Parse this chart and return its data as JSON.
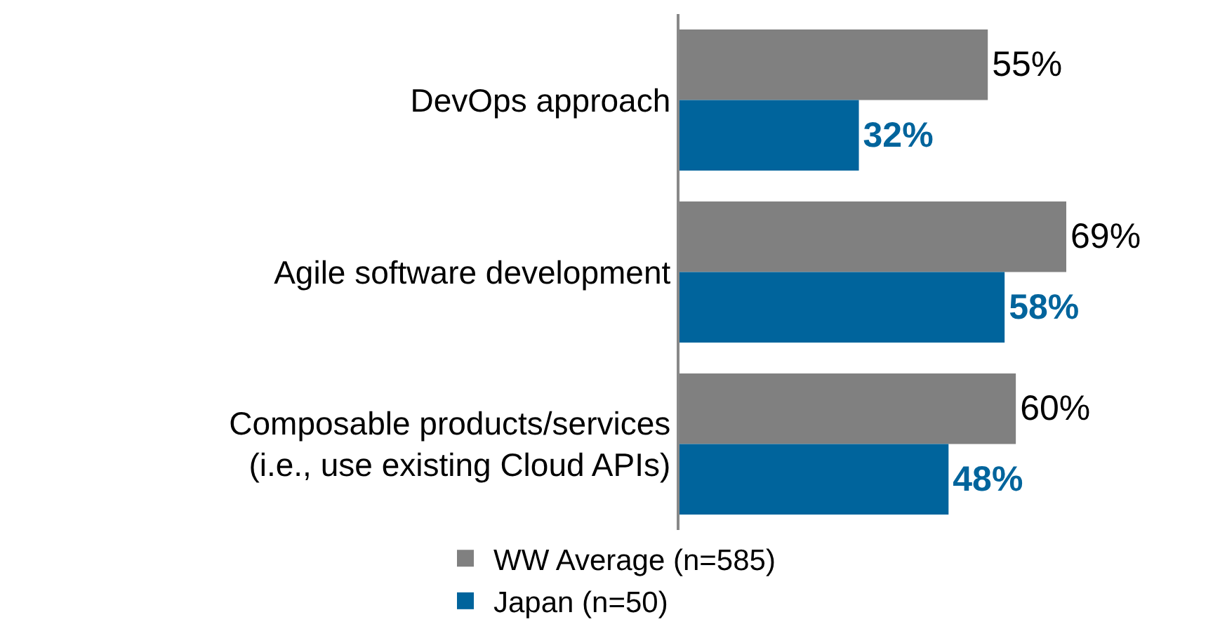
{
  "chart_data": {
    "type": "bar",
    "orientation": "horizontal",
    "categories": [
      "DevOps approach",
      "Agile software development",
      "Composable products/services\n(i.e., use existing Cloud APIs)"
    ],
    "series": [
      {
        "name": "WW Average (n=585)",
        "color": "#808080",
        "values": [
          55,
          69,
          60
        ],
        "value_labels": [
          "55%",
          "69%",
          "60%"
        ]
      },
      {
        "name": "Japan (n=50)",
        "color": "#00649c",
        "values": [
          32,
          58,
          48
        ],
        "value_labels": [
          "32%",
          "58%",
          "48%"
        ]
      }
    ],
    "legend": "bottom",
    "grid": false,
    "tick_labels": "y"
  }
}
